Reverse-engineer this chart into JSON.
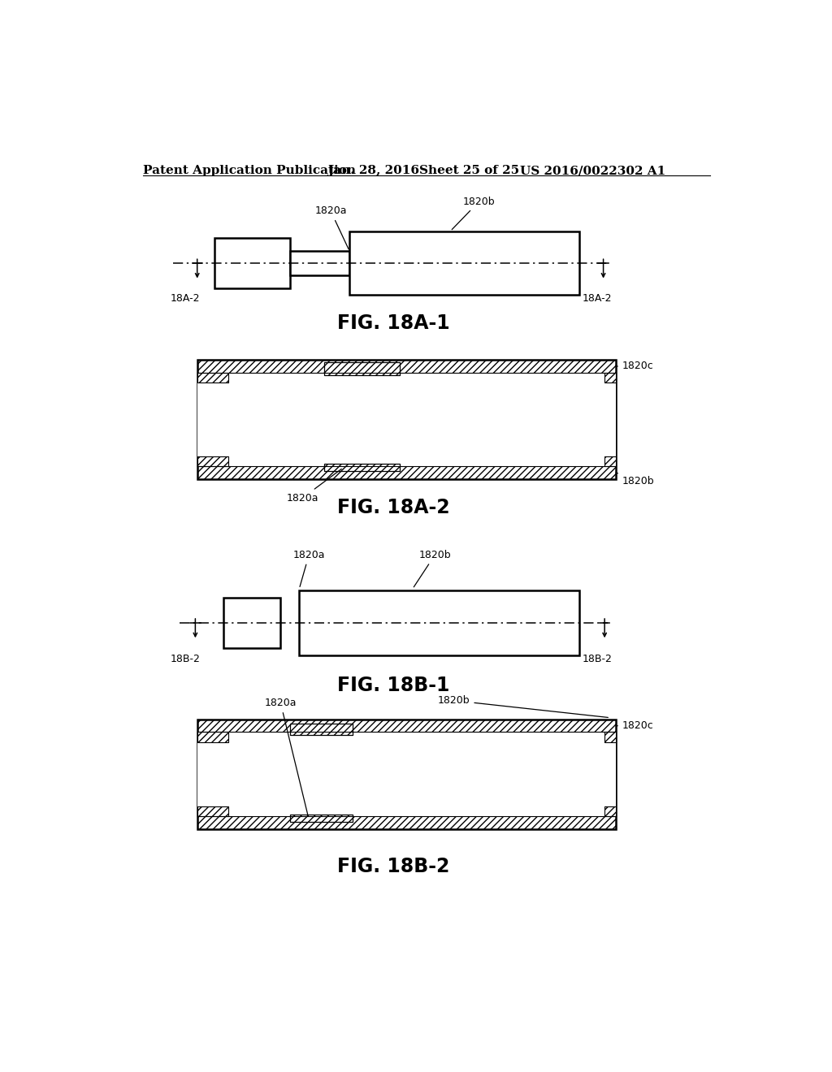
{
  "bg_color": "#ffffff",
  "header_text": "Patent Application Publication",
  "header_date": "Jan. 28, 2016",
  "header_sheet": "Sheet 25 of 25",
  "header_patent": "US 2016/0022302 A1",
  "fig_labels": [
    "FIG. 18A-1",
    "FIG. 18A-2",
    "FIG. 18B-1",
    "FIG. 18B-2"
  ],
  "fig_label_fontsize": 17,
  "header_fontsize": 11,
  "annotation_fontsize": 9
}
